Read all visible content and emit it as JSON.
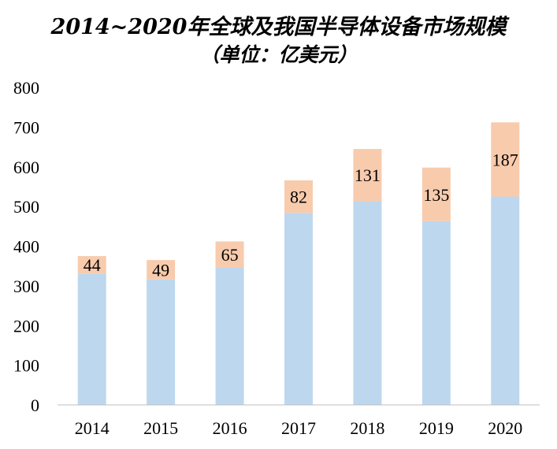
{
  "chart_data": {
    "type": "bar",
    "stacked": true,
    "title": "2014~2020年全球及我国半导体设备市场规模",
    "subtitle": "（单位：亿美元）",
    "categories": [
      "2014",
      "2015",
      "2016",
      "2017",
      "2018",
      "2019",
      "2020"
    ],
    "series": [
      {
        "name": "",
        "color": "#bdd7ee",
        "values": [
          331,
          316,
          347,
          484,
          514,
          463,
          525
        ]
      },
      {
        "name": "",
        "color": "#f8cbad",
        "values": [
          44,
          49,
          65,
          82,
          131,
          135,
          187
        ],
        "data_labels": [
          "44",
          "49",
          "65",
          "82",
          "131",
          "135",
          "187"
        ]
      }
    ],
    "ylim": [
      0,
      800
    ],
    "yticks": [
      "0",
      "100",
      "200",
      "300",
      "400",
      "500",
      "600",
      "700",
      "800"
    ],
    "grid": false,
    "legend": "none",
    "xlabel": "",
    "ylabel": ""
  }
}
